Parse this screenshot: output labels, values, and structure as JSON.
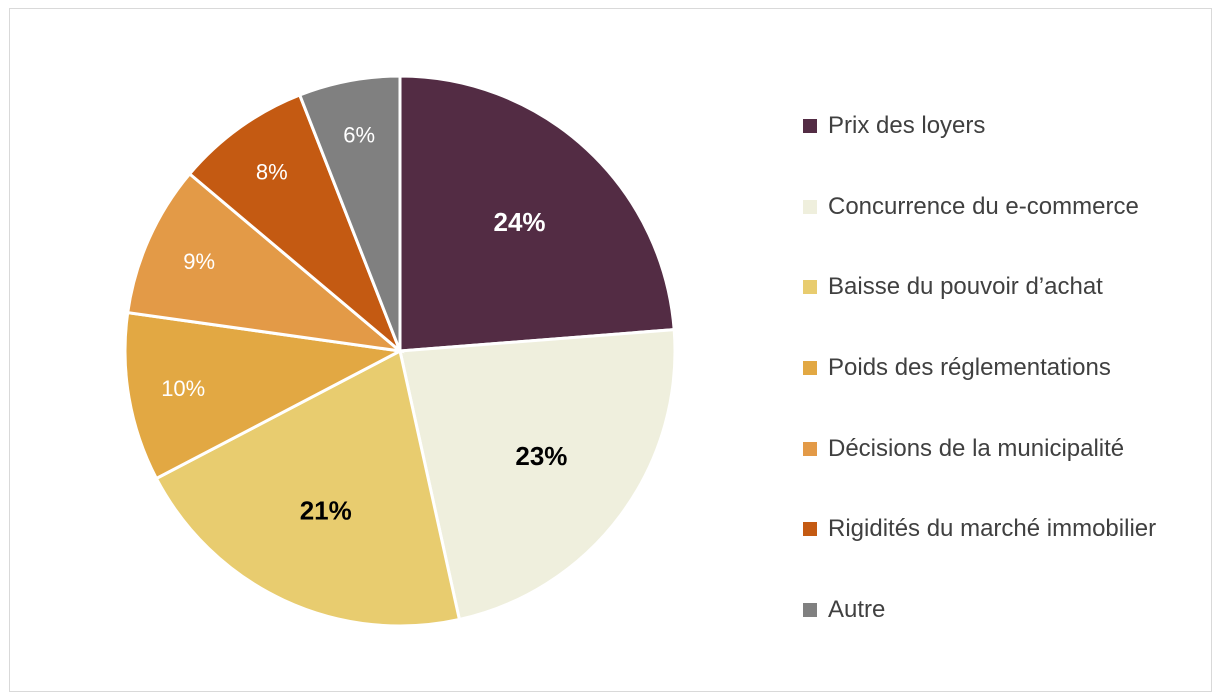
{
  "chart_data": {
    "type": "pie",
    "start_angle_deg": 0,
    "direction": "clockwise",
    "legend_position": "right",
    "categories": [
      "Prix des loyers",
      "Concurrence du e-commerce",
      "Baisse du pouvoir d’achat",
      "Poids des réglementations",
      "Décisions de la municipalité",
      "Rigidités du marché immobilier",
      "Autre"
    ],
    "values": [
      24,
      23,
      21,
      10,
      9,
      8,
      6
    ],
    "data_labels": [
      "24%",
      "23%",
      "21%",
      "10%",
      "9%",
      "8%",
      "6%"
    ],
    "colors": [
      "#532c44",
      "#efefdd",
      "#e8cc6f",
      "#e2a843",
      "#e39a47",
      "#c45a12",
      "#808080"
    ],
    "label_colors": [
      "#ffffff",
      "#000000",
      "#000000",
      "#ffffff",
      "#ffffff",
      "#ffffff",
      "#ffffff"
    ],
    "label_bold": [
      true,
      true,
      true,
      false,
      false,
      false,
      false
    ]
  }
}
